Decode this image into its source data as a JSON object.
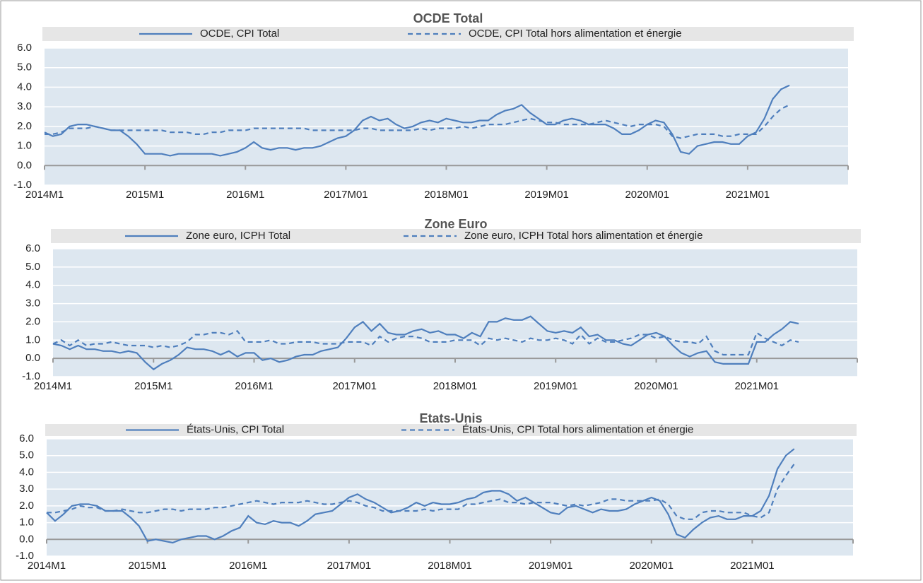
{
  "chart_data": [
    {
      "type": "line",
      "title": "OCDE Total",
      "categories": [
        "2014M1",
        null,
        null,
        null,
        null,
        null,
        null,
        null,
        null,
        null,
        null,
        null,
        "2015M1",
        null,
        null,
        null,
        null,
        null,
        null,
        null,
        null,
        null,
        null,
        null,
        "2016M1",
        null,
        null,
        null,
        null,
        null,
        null,
        null,
        null,
        null,
        null,
        null,
        "2017M01",
        null,
        null,
        null,
        null,
        null,
        null,
        null,
        null,
        null,
        null,
        null,
        "2018M01",
        null,
        null,
        null,
        null,
        null,
        null,
        null,
        null,
        null,
        null,
        null,
        "2019M01",
        null,
        null,
        null,
        null,
        null,
        null,
        null,
        null,
        null,
        null,
        null,
        "2020M01",
        null,
        null,
        null,
        null,
        null,
        null,
        null,
        null,
        null,
        null,
        null,
        "2021M01",
        null,
        null,
        null,
        null,
        null,
        null,
        null,
        null,
        null,
        null,
        null
      ],
      "series": [
        {
          "name": "OCDE, CPI Total",
          "color": "#4f7fbd",
          "linestyle": "solid",
          "values": [
            1.7,
            1.5,
            1.6,
            2.0,
            2.1,
            2.1,
            2.0,
            1.9,
            1.8,
            1.8,
            1.5,
            1.1,
            0.6,
            0.6,
            0.6,
            0.5,
            0.6,
            0.6,
            0.6,
            0.6,
            0.6,
            0.5,
            0.6,
            0.7,
            0.9,
            1.2,
            0.9,
            0.8,
            0.9,
            0.9,
            0.8,
            0.9,
            0.9,
            1.0,
            1.2,
            1.4,
            1.5,
            1.8,
            2.3,
            2.5,
            2.3,
            2.4,
            2.1,
            1.9,
            2.0,
            2.2,
            2.3,
            2.2,
            2.4,
            2.3,
            2.2,
            2.2,
            2.3,
            2.3,
            2.6,
            2.8,
            2.9,
            3.1,
            2.7,
            2.4,
            2.1,
            2.1,
            2.3,
            2.4,
            2.3,
            2.1,
            2.1,
            2.1,
            1.9,
            1.6,
            1.6,
            1.8,
            2.1,
            2.3,
            2.2,
            1.6,
            0.7,
            0.6,
            1.0,
            1.1,
            1.2,
            1.2,
            1.1,
            1.1,
            1.5,
            1.7,
            2.4,
            3.4,
            3.9,
            4.1,
            null,
            null,
            null,
            null,
            null,
            null
          ]
        },
        {
          "name": "OCDE, CPI Total hors alimentation et énergie",
          "color": "#4f7fbd",
          "linestyle": "dashed",
          "values": [
            1.6,
            1.6,
            1.7,
            1.9,
            1.9,
            1.9,
            2.0,
            1.9,
            1.8,
            1.8,
            1.8,
            1.8,
            1.8,
            1.8,
            1.8,
            1.7,
            1.7,
            1.7,
            1.6,
            1.6,
            1.7,
            1.7,
            1.8,
            1.8,
            1.8,
            1.9,
            1.9,
            1.9,
            1.9,
            1.9,
            1.9,
            1.9,
            1.8,
            1.8,
            1.8,
            1.8,
            1.8,
            1.8,
            1.9,
            1.9,
            1.8,
            1.8,
            1.8,
            1.8,
            1.8,
            1.9,
            1.8,
            1.9,
            1.9,
            1.9,
            2.0,
            1.9,
            2.0,
            2.1,
            2.1,
            2.1,
            2.2,
            2.3,
            2.4,
            2.3,
            2.2,
            2.2,
            2.1,
            2.1,
            2.1,
            2.1,
            2.2,
            2.3,
            2.2,
            2.1,
            2.0,
            2.1,
            2.1,
            2.1,
            2.0,
            1.5,
            1.4,
            1.5,
            1.6,
            1.6,
            1.6,
            1.5,
            1.5,
            1.6,
            1.6,
            1.6,
            2.0,
            2.5,
            2.9,
            3.1,
            null,
            null,
            null,
            null,
            null,
            null
          ]
        }
      ],
      "ylim": [
        -1,
        6
      ],
      "yticks": [
        {
          "value": -1,
          "label": "-1.0"
        },
        {
          "value": 0,
          "label": "0.0"
        },
        {
          "value": 1,
          "label": "1.0"
        },
        {
          "value": 2,
          "label": "2.0"
        },
        {
          "value": 3,
          "label": "3.0"
        },
        {
          "value": 4,
          "label": "4.0"
        },
        {
          "value": 5,
          "label": "5.0"
        },
        {
          "value": 6,
          "label": "6.0"
        }
      ],
      "grid": true,
      "legend": "top"
    },
    {
      "type": "line",
      "title": "Zone Euro",
      "categories": [
        "2014M1",
        null,
        null,
        null,
        null,
        null,
        null,
        null,
        null,
        null,
        null,
        null,
        "2015M1",
        null,
        null,
        null,
        null,
        null,
        null,
        null,
        null,
        null,
        null,
        null,
        "2016M1",
        null,
        null,
        null,
        null,
        null,
        null,
        null,
        null,
        null,
        null,
        null,
        "2017M01",
        null,
        null,
        null,
        null,
        null,
        null,
        null,
        null,
        null,
        null,
        null,
        "2018M01",
        null,
        null,
        null,
        null,
        null,
        null,
        null,
        null,
        null,
        null,
        null,
        "2019M01",
        null,
        null,
        null,
        null,
        null,
        null,
        null,
        null,
        null,
        null,
        null,
        "2020M01",
        null,
        null,
        null,
        null,
        null,
        null,
        null,
        null,
        null,
        null,
        null,
        "2021M01",
        null,
        null,
        null,
        null,
        null,
        null,
        null,
        null,
        null,
        null,
        null
      ],
      "series": [
        {
          "name": "Zone euro, ICPH Total",
          "color": "#4f7fbd",
          "linestyle": "solid",
          "values": [
            0.8,
            0.7,
            0.5,
            0.7,
            0.5,
            0.5,
            0.4,
            0.4,
            0.3,
            0.4,
            0.3,
            -0.2,
            -0.6,
            -0.3,
            -0.1,
            0.2,
            0.6,
            0.5,
            0.5,
            0.4,
            0.2,
            0.4,
            0.1,
            0.3,
            0.3,
            -0.1,
            0.0,
            -0.2,
            -0.1,
            0.1,
            0.2,
            0.2,
            0.4,
            0.5,
            0.6,
            1.1,
            1.7,
            2.0,
            1.5,
            1.9,
            1.4,
            1.3,
            1.3,
            1.5,
            1.6,
            1.4,
            1.5,
            1.3,
            1.3,
            1.1,
            1.4,
            1.2,
            2.0,
            2.0,
            2.2,
            2.1,
            2.1,
            2.3,
            1.9,
            1.5,
            1.4,
            1.5,
            1.4,
            1.7,
            1.2,
            1.3,
            1.0,
            1.0,
            0.8,
            0.7,
            1.0,
            1.3,
            1.4,
            1.2,
            0.7,
            0.3,
            0.1,
            0.3,
            0.4,
            -0.2,
            -0.3,
            -0.3,
            -0.3,
            -0.3,
            0.9,
            0.9,
            1.3,
            1.6,
            2.0,
            1.9,
            null,
            null,
            null,
            null,
            null,
            null
          ]
        },
        {
          "name": "Zone euro, ICPH Total hors alimentation et énergie",
          "color": "#4f7fbd",
          "linestyle": "dashed",
          "values": [
            0.8,
            1.0,
            0.7,
            1.0,
            0.7,
            0.8,
            0.8,
            0.9,
            0.8,
            0.7,
            0.7,
            0.7,
            0.6,
            0.7,
            0.6,
            0.7,
            0.9,
            1.3,
            1.3,
            1.4,
            1.4,
            1.3,
            1.5,
            0.9,
            0.9,
            0.9,
            1.0,
            0.8,
            0.8,
            0.9,
            0.9,
            0.9,
            0.8,
            0.8,
            0.8,
            0.9,
            0.9,
            0.9,
            0.7,
            1.2,
            0.9,
            1.1,
            1.2,
            1.2,
            1.1,
            0.9,
            0.9,
            0.9,
            1.0,
            1.0,
            1.0,
            0.7,
            1.1,
            1.0,
            1.1,
            1.0,
            0.9,
            1.1,
            1.0,
            1.0,
            1.1,
            1.0,
            0.8,
            1.3,
            0.8,
            1.1,
            0.9,
            0.9,
            1.0,
            1.1,
            1.3,
            1.3,
            1.1,
            1.2,
            1.0,
            0.9,
            0.9,
            0.8,
            1.2,
            0.4,
            0.2,
            0.2,
            0.2,
            0.2,
            1.4,
            1.1,
            0.9,
            0.7,
            1.0,
            0.9,
            null,
            null,
            null,
            null,
            null,
            null
          ]
        }
      ],
      "ylim": [
        -1,
        6
      ],
      "yticks": [
        {
          "value": -1,
          "label": "-1.0"
        },
        {
          "value": 0,
          "label": "0.0"
        },
        {
          "value": 1,
          "label": "1.0"
        },
        {
          "value": 2,
          "label": "2.0"
        },
        {
          "value": 3,
          "label": "3.0"
        },
        {
          "value": 4,
          "label": "4.0"
        },
        {
          "value": 5,
          "label": "5.0"
        },
        {
          "value": 6,
          "label": "6.0"
        }
      ],
      "grid": true,
      "legend": "top"
    },
    {
      "type": "line",
      "title": "Etats-Unis",
      "categories": [
        "2014M1",
        null,
        null,
        null,
        null,
        null,
        null,
        null,
        null,
        null,
        null,
        null,
        "2015M1",
        null,
        null,
        null,
        null,
        null,
        null,
        null,
        null,
        null,
        null,
        null,
        "2016M1",
        null,
        null,
        null,
        null,
        null,
        null,
        null,
        null,
        null,
        null,
        null,
        "2017M01",
        null,
        null,
        null,
        null,
        null,
        null,
        null,
        null,
        null,
        null,
        null,
        "2018M01",
        null,
        null,
        null,
        null,
        null,
        null,
        null,
        null,
        null,
        null,
        null,
        "2019M01",
        null,
        null,
        null,
        null,
        null,
        null,
        null,
        null,
        null,
        null,
        null,
        "2020M01",
        null,
        null,
        null,
        null,
        null,
        null,
        null,
        null,
        null,
        null,
        null,
        "2021M01",
        null,
        null,
        null,
        null,
        null,
        null,
        null,
        null,
        null,
        null,
        null
      ],
      "series": [
        {
          "name": "États-Unis, CPI Total",
          "color": "#4f7fbd",
          "linestyle": "solid",
          "values": [
            1.6,
            1.1,
            1.5,
            2.0,
            2.1,
            2.1,
            2.0,
            1.7,
            1.7,
            1.7,
            1.3,
            0.8,
            -0.1,
            0.0,
            -0.1,
            -0.2,
            0.0,
            0.1,
            0.2,
            0.2,
            0.0,
            0.2,
            0.5,
            0.7,
            1.4,
            1.0,
            0.9,
            1.1,
            1.0,
            1.0,
            0.8,
            1.1,
            1.5,
            1.6,
            1.7,
            2.1,
            2.5,
            2.7,
            2.4,
            2.2,
            1.9,
            1.6,
            1.7,
            1.9,
            2.2,
            2.0,
            2.2,
            2.1,
            2.1,
            2.2,
            2.4,
            2.5,
            2.8,
            2.9,
            2.9,
            2.7,
            2.3,
            2.5,
            2.2,
            1.9,
            1.6,
            1.5,
            1.9,
            2.0,
            1.8,
            1.6,
            1.8,
            1.7,
            1.7,
            1.8,
            2.1,
            2.3,
            2.5,
            2.3,
            1.5,
            0.3,
            0.1,
            0.6,
            1.0,
            1.3,
            1.4,
            1.2,
            1.2,
            1.4,
            1.4,
            1.7,
            2.6,
            4.2,
            5.0,
            5.4,
            null,
            null,
            null,
            null,
            null,
            null
          ]
        },
        {
          "name": "États-Unis, CPI Total hors alimentation et énergie",
          "color": "#4f7fbd",
          "linestyle": "dashed",
          "values": [
            1.6,
            1.6,
            1.7,
            1.8,
            2.0,
            1.9,
            1.9,
            1.7,
            1.7,
            1.8,
            1.7,
            1.6,
            1.6,
            1.7,
            1.8,
            1.8,
            1.7,
            1.8,
            1.8,
            1.8,
            1.9,
            1.9,
            2.0,
            2.1,
            2.2,
            2.3,
            2.2,
            2.1,
            2.2,
            2.2,
            2.2,
            2.3,
            2.2,
            2.1,
            2.1,
            2.2,
            2.3,
            2.2,
            2.0,
            1.9,
            1.7,
            1.7,
            1.7,
            1.7,
            1.7,
            1.8,
            1.7,
            1.8,
            1.8,
            1.8,
            2.1,
            2.1,
            2.2,
            2.3,
            2.4,
            2.2,
            2.2,
            2.1,
            2.2,
            2.2,
            2.2,
            2.1,
            2.0,
            2.1,
            2.0,
            2.1,
            2.2,
            2.4,
            2.4,
            2.3,
            2.3,
            2.3,
            2.3,
            2.4,
            2.1,
            1.4,
            1.2,
            1.2,
            1.6,
            1.7,
            1.7,
            1.6,
            1.6,
            1.6,
            1.4,
            1.3,
            1.6,
            3.0,
            3.8,
            4.5,
            null,
            null,
            null,
            null,
            null,
            null
          ]
        }
      ],
      "ylim": [
        -1,
        6
      ],
      "yticks": [
        {
          "value": -1,
          "label": "-1.0"
        },
        {
          "value": 0,
          "label": "0.0"
        },
        {
          "value": 1,
          "label": "1.0"
        },
        {
          "value": 2,
          "label": "2.0"
        },
        {
          "value": 3,
          "label": "3.0"
        },
        {
          "value": 4,
          "label": "4.0"
        },
        {
          "value": 5,
          "label": "5.0"
        },
        {
          "value": 6,
          "label": "6.0"
        }
      ],
      "grid": true,
      "legend": "top"
    }
  ]
}
